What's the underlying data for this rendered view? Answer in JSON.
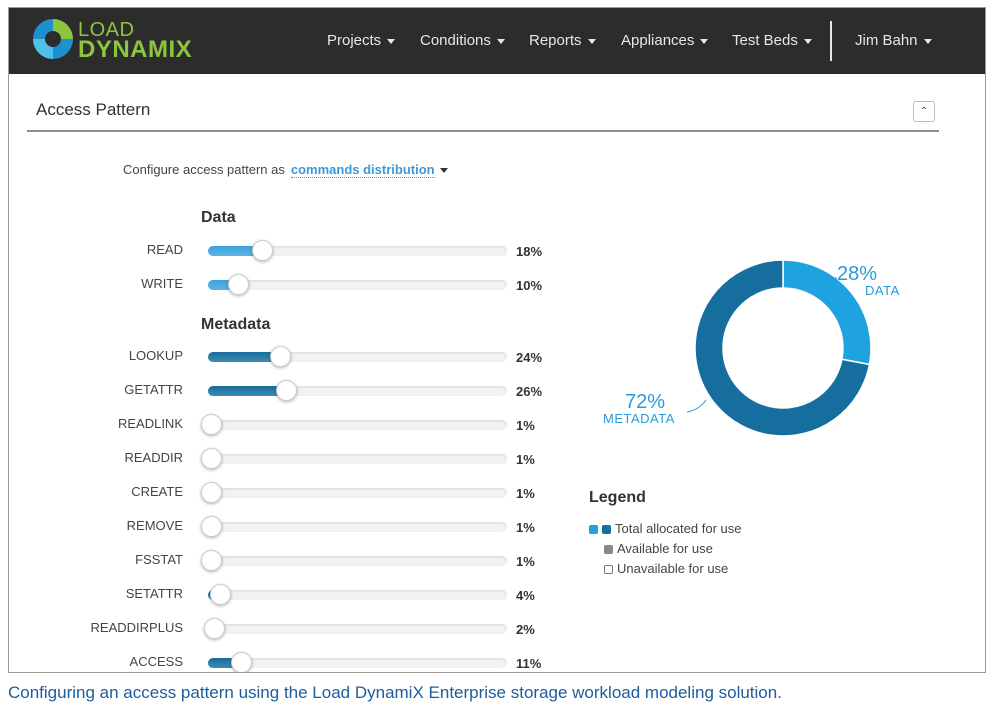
{
  "nav": {
    "logo_line1": "LOAD",
    "logo_line2": "DYNAMIX",
    "items": [
      {
        "label": "Projects"
      },
      {
        "label": "Conditions"
      },
      {
        "label": "Reports"
      },
      {
        "label": "Appliances"
      },
      {
        "label": "Test Beds"
      }
    ],
    "user": "Jim Bahn"
  },
  "panel": {
    "title": "Access Pattern",
    "collapse_icon": "double-chevron-up-icon",
    "config_label": "Configure access pattern as",
    "config_value": "commands distribution"
  },
  "sections": {
    "data_title": "Data",
    "metadata_title": "Metadata"
  },
  "sliders": [
    {
      "label": "READ",
      "value": 18,
      "display": "18%",
      "group": "data"
    },
    {
      "label": "WRITE",
      "value": 10,
      "display": "10%",
      "group": "data"
    },
    {
      "label": "LOOKUP",
      "value": 24,
      "display": "24%",
      "group": "metadata"
    },
    {
      "label": "GETATTR",
      "value": 26,
      "display": "26%",
      "group": "metadata"
    },
    {
      "label": "READLINK",
      "value": 1,
      "display": "1%",
      "group": "metadata"
    },
    {
      "label": "READDIR",
      "value": 1,
      "display": "1%",
      "group": "metadata"
    },
    {
      "label": "CREATE",
      "value": 1,
      "display": "1%",
      "group": "metadata"
    },
    {
      "label": "REMOVE",
      "value": 1,
      "display": "1%",
      "group": "metadata"
    },
    {
      "label": "FSSTAT",
      "value": 1,
      "display": "1%",
      "group": "metadata"
    },
    {
      "label": "SETATTR",
      "value": 4,
      "display": "4%",
      "group": "metadata"
    },
    {
      "label": "READDIRPLUS",
      "value": 2,
      "display": "2%",
      "group": "metadata"
    },
    {
      "label": "ACCESS",
      "value": 11,
      "display": "11%",
      "group": "metadata"
    }
  ],
  "donut": {
    "slices": [
      {
        "name": "DATA",
        "value": 28,
        "display": "28%",
        "color": "#1fa3e0"
      },
      {
        "name": "METADATA",
        "value": 72,
        "display": "72%",
        "color": "#156e9e"
      }
    ]
  },
  "legend": {
    "title": "Legend",
    "items": [
      {
        "label": "Total allocated for use",
        "colors": [
          "#1fa3e0",
          "#156e9e"
        ]
      },
      {
        "label": "Available for use",
        "colors": [
          "#888888"
        ]
      },
      {
        "label": "Unavailable for use",
        "colors": [
          "#ffffff"
        ]
      }
    ]
  },
  "colors": {
    "data_fill": "#3aa3dd",
    "metadata_fill": "#166f9f",
    "navbar": "#2c2c2c",
    "logo_green": "#8cc63f"
  },
  "caption": "Configuring an access pattern using the Load DynamiX Enterprise storage workload modeling solution."
}
